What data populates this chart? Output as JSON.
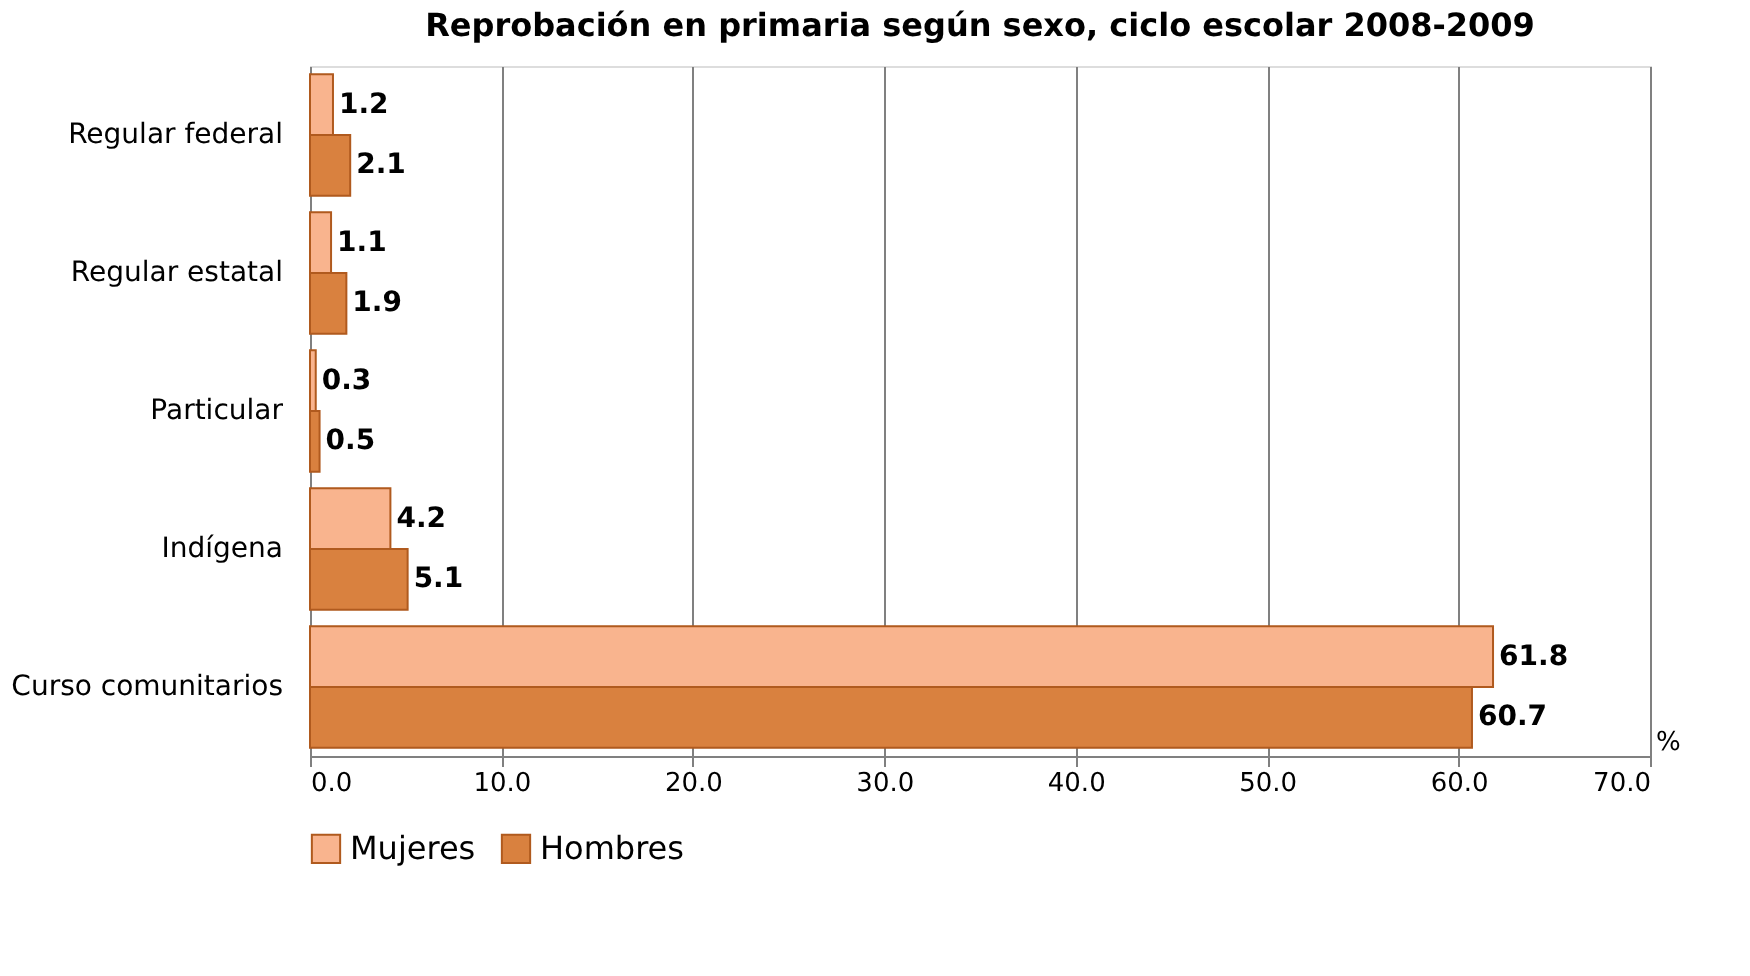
{
  "chart_data": {
    "type": "bar",
    "orientation": "horizontal",
    "title": "Reprobación en primaria según sexo, ciclo escolar 2008-2009",
    "categories": [
      "Regular federal",
      "Regular estatal",
      "Particular",
      "Indígena",
      "Curso comunitarios"
    ],
    "series": [
      {
        "name": "Mujeres",
        "color": "#f9b48e",
        "values": [
          1.2,
          1.1,
          0.3,
          4.2,
          61.8
        ]
      },
      {
        "name": "Hombres",
        "color": "#d9813f",
        "values": [
          2.1,
          1.9,
          0.5,
          5.1,
          60.7
        ]
      }
    ],
    "xlim": [
      0,
      70
    ],
    "xticks": [
      {
        "value": 0,
        "label": "0.0"
      },
      {
        "value": 10,
        "label": "10.0"
      },
      {
        "value": 20,
        "label": "20.0"
      },
      {
        "value": 30,
        "label": "30.0"
      },
      {
        "value": 40,
        "label": "40.0"
      },
      {
        "value": 50,
        "label": "50.0"
      },
      {
        "value": 60,
        "label": "60.0"
      },
      {
        "value": 70,
        "label": "70.0"
      }
    ],
    "grid": "x",
    "data_labels": true,
    "legend": "bottom",
    "annotations": [
      "%"
    ]
  }
}
